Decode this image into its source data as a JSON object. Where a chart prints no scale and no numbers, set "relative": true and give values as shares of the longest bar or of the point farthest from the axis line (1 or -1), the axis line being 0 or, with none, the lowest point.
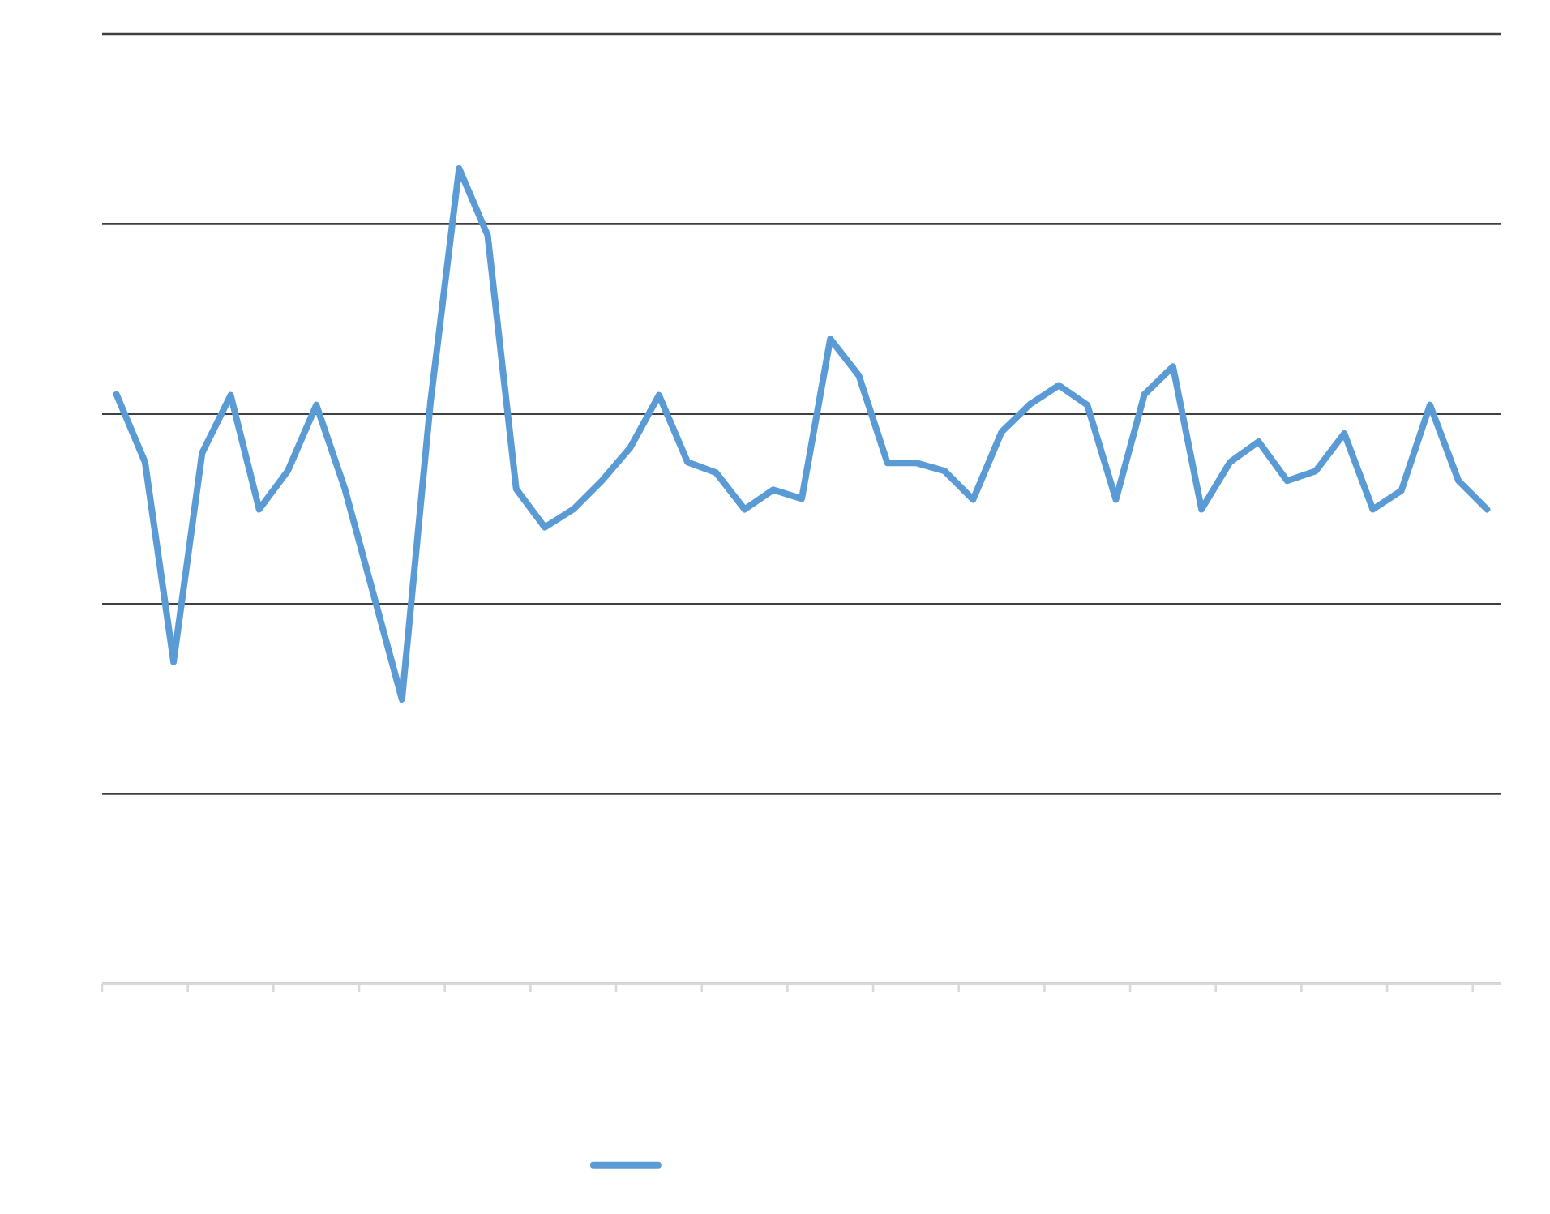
{
  "chart_data": {
    "type": "line",
    "relative": true,
    "categories": [
      null,
      null,
      null,
      null,
      null,
      null,
      null,
      null,
      null,
      null,
      null,
      null,
      null,
      null,
      null,
      null,
      null,
      null,
      null,
      null,
      null,
      null,
      null,
      null,
      null,
      null,
      null,
      null,
      null,
      null,
      null,
      null,
      null,
      null,
      null,
      null,
      null,
      null,
      null,
      null,
      null,
      null,
      null,
      null,
      null,
      null,
      null,
      null,
      null
    ],
    "series": [
      {
        "color": "#5b9bd5",
        "values": [
          0.723,
          0.64,
          0.395,
          0.651,
          0.722,
          0.582,
          0.629,
          0.71,
          0.607,
          0.478,
          0.349,
          0.714,
          1,
          0.918,
          0.607,
          0.56,
          0.582,
          0.617,
          0.658,
          0.722,
          0.64,
          0.627,
          0.582,
          0.606,
          0.595,
          0.791,
          0.746,
          0.639,
          0.639,
          0.629,
          0.594,
          0.677,
          0.711,
          0.734,
          0.71,
          0.594,
          0.723,
          0.757,
          0.582,
          0.64,
          0.665,
          0.617,
          0.629,
          0.675,
          0.582,
          0.605,
          0.71,
          0.617,
          0.582
        ]
      }
    ],
    "grid": "y",
    "marker": "none",
    "line_style": "solid"
  }
}
